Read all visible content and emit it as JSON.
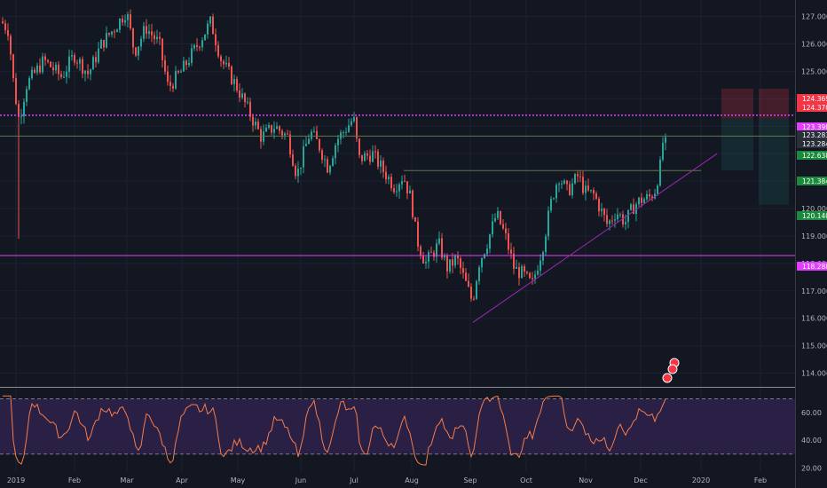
{
  "chart_data": {
    "type": "candlestick",
    "price_axis": {
      "range": [
        113.5,
        127.6
      ],
      "ticks": [
        "127.000",
        "126.000",
        "125.000",
        "124.000",
        "123.000",
        "122.000",
        "121.000",
        "120.000",
        "119.000",
        "118.000",
        "117.000",
        "116.000",
        "115.000",
        "114.000"
      ]
    },
    "date_axis": {
      "labels": [
        "2019",
        "Feb",
        "Mar",
        "Apr",
        "May",
        "Jun",
        "Jul",
        "Aug",
        "Sep",
        "Oct",
        "Nov",
        "Dec",
        "2020",
        "Feb"
      ]
    },
    "price_tags": [
      {
        "label": "124.369",
        "price": 124.369,
        "color": "#f23645"
      },
      {
        "label": "124.370",
        "price": 124.37,
        "color": "#f23645"
      },
      {
        "label": "123.398",
        "price": 123.398,
        "color": "#e040fb"
      },
      {
        "label": "123.283",
        "price": 123.283,
        "color": "#2a2e39"
      },
      {
        "label": "123.284",
        "price": 123.284,
        "color": "#2a2e39"
      },
      {
        "label": "122.638",
        "price": 122.638,
        "color": "#1b8a3c"
      },
      {
        "label": "121.384",
        "price": 121.384,
        "color": "#1b8a3c"
      },
      {
        "label": "120.140",
        "price": 120.14,
        "color": "#1b8a3c"
      },
      {
        "label": "118.288",
        "price": 118.288,
        "color": "#e040fb"
      }
    ],
    "horizontal_lines": [
      {
        "price": 123.398,
        "color": "#e040fb",
        "style": "dotted"
      },
      {
        "price": 122.638,
        "color": "#5d7a4a",
        "style": "solid"
      },
      {
        "price": 118.288,
        "color": "#e040fb",
        "style": "solid"
      }
    ],
    "trendline": {
      "from": {
        "date": "Sep",
        "price": 115.85
      },
      "to": {
        "date": "Dec",
        "price": 122.0
      },
      "color": "#9c27b0"
    },
    "colors": {
      "up": "#26a69a",
      "down": "#ef5350",
      "background": "#131722",
      "rsi_line": "#f57c4a",
      "rsi_band": "#2a1f45"
    },
    "rsi": {
      "ticks": [
        "60.00",
        "40.00",
        "20.00"
      ],
      "upper": 70,
      "lower": 30
    }
  }
}
